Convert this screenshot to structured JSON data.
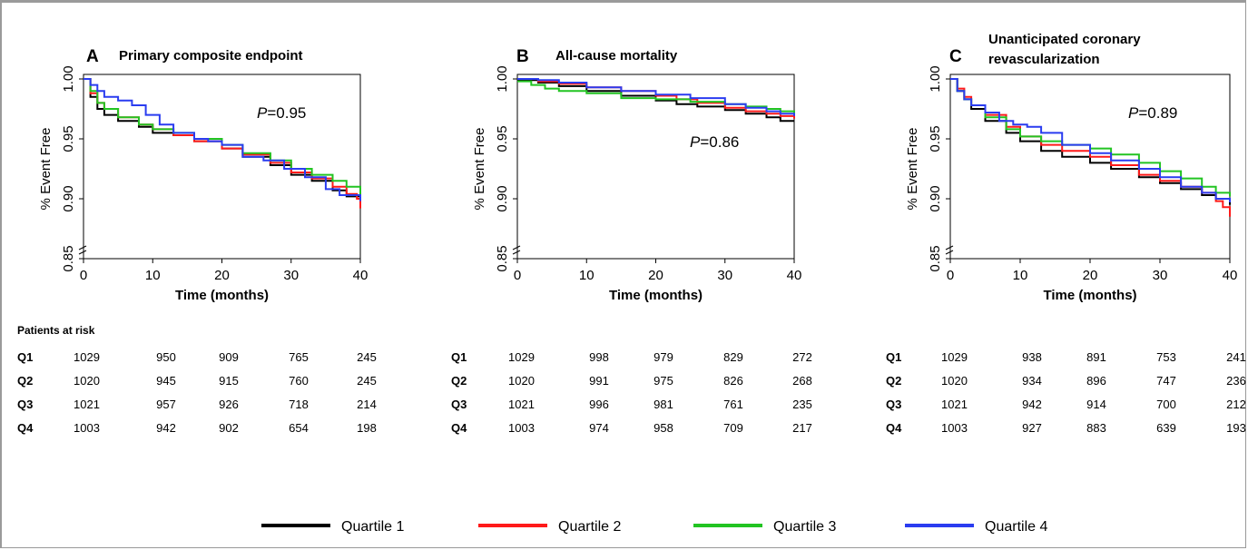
{
  "colors": {
    "q1": "#000000",
    "q2": "#ff1a1a",
    "q3": "#22c422",
    "q4": "#2a3cf0"
  },
  "chart_data": [
    {
      "type": "line",
      "letter": "A",
      "title": "Primary composite endpoint",
      "xlabel": "Time (months)",
      "ylabel": "% Event Free",
      "xlim": [
        0,
        40
      ],
      "ylim": [
        0.85,
        1.0
      ],
      "xticks": [
        "0",
        "10",
        "20",
        "30",
        "40"
      ],
      "yticks": [
        "0.85",
        "0.90",
        "0.95",
        "1.00"
      ],
      "pvalue_label": "P",
      "pvalue_text": "=0.95",
      "series": [
        {
          "name": "Quartile 1",
          "x": [
            0,
            1,
            2,
            3,
            5,
            8,
            10,
            13,
            16,
            20,
            23,
            27,
            30,
            33,
            36,
            38,
            40
          ],
          "y": [
            1.0,
            0.985,
            0.975,
            0.97,
            0.965,
            0.96,
            0.955,
            0.953,
            0.948,
            0.942,
            0.935,
            0.928,
            0.92,
            0.915,
            0.907,
            0.902,
            0.897
          ]
        },
        {
          "name": "Quartile 2",
          "x": [
            0,
            1,
            2,
            3,
            5,
            8,
            10,
            13,
            16,
            20,
            23,
            27,
            30,
            33,
            36,
            38,
            39.5,
            40
          ],
          "y": [
            1.0,
            0.988,
            0.98,
            0.975,
            0.968,
            0.962,
            0.958,
            0.953,
            0.948,
            0.942,
            0.937,
            0.93,
            0.922,
            0.917,
            0.91,
            0.904,
            0.9,
            0.892
          ]
        },
        {
          "name": "Quartile 3",
          "x": [
            0,
            1,
            2,
            3,
            5,
            8,
            10,
            13,
            16,
            20,
            23,
            27,
            30,
            33,
            36,
            38,
            40
          ],
          "y": [
            1.0,
            0.99,
            0.98,
            0.975,
            0.968,
            0.962,
            0.958,
            0.955,
            0.95,
            0.945,
            0.938,
            0.932,
            0.925,
            0.92,
            0.915,
            0.91,
            0.903
          ]
        },
        {
          "name": "Quartile 4",
          "x": [
            0,
            1,
            2,
            3,
            5,
            7,
            9,
            11,
            13,
            16,
            18,
            20,
            23,
            26,
            29,
            32,
            35,
            37,
            40
          ],
          "y": [
            1.0,
            0.995,
            0.99,
            0.985,
            0.982,
            0.978,
            0.97,
            0.962,
            0.955,
            0.95,
            0.948,
            0.945,
            0.935,
            0.932,
            0.925,
            0.918,
            0.908,
            0.903,
            0.898
          ]
        }
      ]
    },
    {
      "type": "line",
      "letter": "B",
      "title": "All-cause mortality",
      "xlabel": "Time (months)",
      "ylabel": "% Event Free",
      "xlim": [
        0,
        40
      ],
      "ylim": [
        0.85,
        1.0
      ],
      "xticks": [
        "0",
        "10",
        "20",
        "30",
        "40"
      ],
      "yticks": [
        "0.85",
        "0.90",
        "0.95",
        "1.00"
      ],
      "pvalue_label": "P",
      "pvalue_text": "=0.86",
      "series": [
        {
          "name": "Quartile 1",
          "x": [
            0,
            3,
            6,
            10,
            15,
            20,
            23,
            26,
            30,
            33,
            36,
            38,
            40
          ],
          "y": [
            0.999,
            0.997,
            0.994,
            0.99,
            0.986,
            0.982,
            0.979,
            0.977,
            0.974,
            0.971,
            0.968,
            0.965,
            0.965
          ]
        },
        {
          "name": "Quartile 2",
          "x": [
            0,
            3,
            6,
            10,
            15,
            20,
            23,
            26,
            30,
            33,
            36,
            38,
            40
          ],
          "y": [
            1.0,
            0.998,
            0.996,
            0.993,
            0.99,
            0.986,
            0.983,
            0.98,
            0.976,
            0.973,
            0.971,
            0.969,
            0.967
          ]
        },
        {
          "name": "Quartile 3",
          "x": [
            0,
            2,
            4,
            6,
            10,
            15,
            20,
            25,
            30,
            33,
            36,
            38,
            40
          ],
          "y": [
            0.998,
            0.995,
            0.992,
            0.99,
            0.988,
            0.984,
            0.983,
            0.981,
            0.979,
            0.977,
            0.975,
            0.973,
            0.971
          ]
        },
        {
          "name": "Quartile 4",
          "x": [
            0,
            3,
            6,
            10,
            15,
            20,
            25,
            30,
            33,
            36,
            38,
            40
          ],
          "y": [
            1.0,
            0.999,
            0.997,
            0.993,
            0.99,
            0.987,
            0.984,
            0.979,
            0.976,
            0.973,
            0.971,
            0.969
          ]
        }
      ]
    },
    {
      "type": "line",
      "letter": "C",
      "title": "Unanticipated coronary revascularization",
      "title_lines": [
        "Unanticipated coronary",
        "revascularization"
      ],
      "xlabel": "Time (months)",
      "ylabel": "% Event Free",
      "xlim": [
        0,
        40
      ],
      "ylim": [
        0.85,
        1.0
      ],
      "xticks": [
        "0",
        "10",
        "20",
        "30",
        "40"
      ],
      "yticks": [
        "0.85",
        "0.90",
        "0.95",
        "1.00"
      ],
      "pvalue_label": "P",
      "pvalue_text": "=0.89",
      "series": [
        {
          "name": "Quartile 1",
          "x": [
            0,
            1,
            2,
            3,
            5,
            8,
            10,
            13,
            16,
            20,
            23,
            27,
            30,
            33,
            36,
            38,
            40
          ],
          "y": [
            1.0,
            0.99,
            0.983,
            0.975,
            0.965,
            0.955,
            0.948,
            0.94,
            0.935,
            0.93,
            0.925,
            0.918,
            0.913,
            0.908,
            0.903,
            0.9,
            0.895
          ]
        },
        {
          "name": "Quartile 2",
          "x": [
            0,
            1,
            2,
            3,
            5,
            8,
            10,
            13,
            16,
            20,
            23,
            27,
            30,
            33,
            36,
            38,
            39,
            40
          ],
          "y": [
            1.0,
            0.992,
            0.985,
            0.978,
            0.97,
            0.96,
            0.952,
            0.945,
            0.94,
            0.935,
            0.928,
            0.92,
            0.915,
            0.91,
            0.905,
            0.898,
            0.893,
            0.885
          ]
        },
        {
          "name": "Quartile 3",
          "x": [
            0,
            1,
            2,
            3,
            5,
            8,
            10,
            13,
            16,
            20,
            23,
            27,
            30,
            33,
            36,
            38,
            40
          ],
          "y": [
            1.0,
            0.99,
            0.983,
            0.978,
            0.968,
            0.958,
            0.952,
            0.948,
            0.945,
            0.942,
            0.937,
            0.93,
            0.923,
            0.917,
            0.91,
            0.905,
            0.902
          ]
        },
        {
          "name": "Quartile 4",
          "x": [
            0,
            1,
            2,
            3,
            5,
            7,
            9,
            11,
            13,
            16,
            20,
            23,
            27,
            30,
            33,
            36,
            38,
            40
          ],
          "y": [
            1.0,
            0.99,
            0.983,
            0.978,
            0.972,
            0.965,
            0.962,
            0.96,
            0.955,
            0.945,
            0.938,
            0.932,
            0.925,
            0.918,
            0.91,
            0.905,
            0.9,
            0.897
          ]
        }
      ]
    }
  ],
  "risk_tables": {
    "heading": "Patients at risk",
    "tables": [
      {
        "rows": [
          {
            "label": "Q1",
            "values": [
              "1029",
              "950",
              "909",
              "765",
              "245"
            ]
          },
          {
            "label": "Q2",
            "values": [
              "1020",
              "945",
              "915",
              "760",
              "245"
            ]
          },
          {
            "label": "Q3",
            "values": [
              "1021",
              "957",
              "926",
              "718",
              "214"
            ]
          },
          {
            "label": "Q4",
            "values": [
              "1003",
              "942",
              "902",
              "654",
              "198"
            ]
          }
        ]
      },
      {
        "rows": [
          {
            "label": "Q1",
            "values": [
              "1029",
              "998",
              "979",
              "829",
              "272"
            ]
          },
          {
            "label": "Q2",
            "values": [
              "1020",
              "991",
              "975",
              "826",
              "268"
            ]
          },
          {
            "label": "Q3",
            "values": [
              "1021",
              "996",
              "981",
              "761",
              "235"
            ]
          },
          {
            "label": "Q4",
            "values": [
              "1003",
              "974",
              "958",
              "709",
              "217"
            ]
          }
        ]
      },
      {
        "rows": [
          {
            "label": "Q1",
            "values": [
              "1029",
              "938",
              "891",
              "753",
              "241"
            ]
          },
          {
            "label": "Q2",
            "values": [
              "1020",
              "934",
              "896",
              "747",
              "236"
            ]
          },
          {
            "label": "Q3",
            "values": [
              "1021",
              "942",
              "914",
              "700",
              "212"
            ]
          },
          {
            "label": "Q4",
            "values": [
              "1003",
              "927",
              "883",
              "639",
              "193"
            ]
          }
        ]
      }
    ]
  },
  "legend": {
    "items": [
      {
        "label": "Quartile 1",
        "color_key": "q1"
      },
      {
        "label": "Quartile 2",
        "color_key": "q2"
      },
      {
        "label": "Quartile 3",
        "color_key": "q3"
      },
      {
        "label": "Quartile 4",
        "color_key": "q4"
      }
    ]
  }
}
